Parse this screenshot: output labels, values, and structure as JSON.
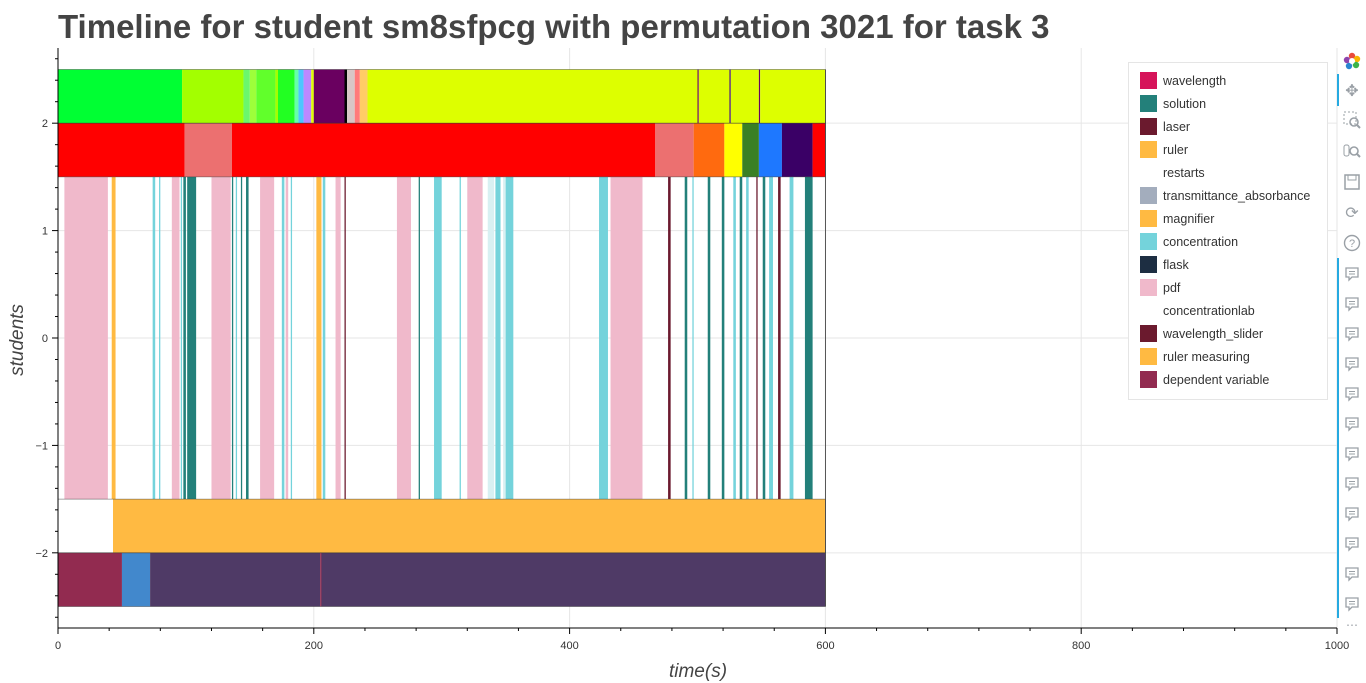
{
  "title": "Timeline for student sm8sfpcg with permutation 3021 for task 3",
  "chart_data": {
    "type": "timeline",
    "xlabel": "time(s)",
    "ylabel": "students",
    "xlim": [
      0,
      1000
    ],
    "ylim": [
      -2.7,
      2.7
    ],
    "x_ticks": [
      "0",
      "200",
      "400",
      "600",
      "800",
      "1000"
    ],
    "y_ticks": [
      "2",
      "1",
      "0",
      "−1",
      "−2"
    ],
    "x_tick_values": [
      0,
      200,
      400,
      600,
      800,
      1000
    ],
    "y_tick_values": [
      2,
      1,
      0,
      -1,
      -2
    ],
    "grid": true,
    "legend_position": "top-right",
    "legend": [
      {
        "label": "wavelength",
        "color": "#d6145a"
      },
      {
        "label": "solution",
        "color": "#23807a"
      },
      {
        "label": "laser",
        "color": "#6b1a2e"
      },
      {
        "label": "ruler",
        "color": "#ffba42"
      },
      {
        "label": "restarts",
        "color": "#ffffff"
      },
      {
        "label": "transmittance_absorbance",
        "color": "#a3adbd"
      },
      {
        "label": "magnifier",
        "color": "#ffba42"
      },
      {
        "label": "concentration",
        "color": "#74d3db"
      },
      {
        "label": "flask",
        "color": "#1d2e42"
      },
      {
        "label": "pdf",
        "color": "#f0b9cb"
      },
      {
        "label": "concentrationlab",
        "color": "#ffffff"
      },
      {
        "label": "wavelength_slider",
        "color": "#6b1a2e"
      },
      {
        "label": "ruler measuring",
        "color": "#ffba42"
      },
      {
        "label": "dependent variable",
        "color": "#922b50"
      }
    ],
    "rows": [
      {
        "y_range": [
          2,
          2.5
        ],
        "segments": [
          {
            "start": 0,
            "end": 97,
            "color": "#00ff33"
          },
          {
            "start": 97,
            "end": 145,
            "color": "#a3ff00"
          },
          {
            "start": 145,
            "end": 150,
            "color": "#6cf76c"
          },
          {
            "start": 150,
            "end": 155,
            "color": "#9dff3a"
          },
          {
            "start": 155,
            "end": 170,
            "color": "#61ff2b"
          },
          {
            "start": 170,
            "end": 172,
            "color": "#a3ff00"
          },
          {
            "start": 172,
            "end": 185,
            "color": "#22ff22"
          },
          {
            "start": 185,
            "end": 188,
            "color": "#66ffaa"
          },
          {
            "start": 188,
            "end": 192,
            "color": "#4cc6ff"
          },
          {
            "start": 192,
            "end": 198,
            "color": "#bb88ff"
          },
          {
            "start": 198,
            "end": 200,
            "color": "#e0ff00"
          },
          {
            "start": 200,
            "end": 224,
            "color": "#6a0060"
          },
          {
            "start": 224,
            "end": 226,
            "color": "#000000"
          },
          {
            "start": 226,
            "end": 232,
            "color": "#d8c6c6"
          },
          {
            "start": 232,
            "end": 236,
            "color": "#ff7a7a"
          },
          {
            "start": 236,
            "end": 242,
            "color": "#ffcc66"
          },
          {
            "start": 242,
            "end": 500,
            "color": "#ddff00"
          },
          {
            "start": 500,
            "end": 501,
            "color": "#6a0060"
          },
          {
            "start": 501,
            "end": 525,
            "color": "#ddff00"
          },
          {
            "start": 525,
            "end": 526,
            "color": "#3d0080"
          },
          {
            "start": 526,
            "end": 548,
            "color": "#ddff00"
          },
          {
            "start": 548,
            "end": 549,
            "color": "#6a0060"
          },
          {
            "start": 549,
            "end": 600,
            "color": "#ddff00"
          }
        ]
      },
      {
        "y_range": [
          1.5,
          2
        ],
        "segments": [
          {
            "start": 0,
            "end": 99,
            "color": "#ff0000"
          },
          {
            "start": 99,
            "end": 136,
            "color": "#ec7070"
          },
          {
            "start": 136,
            "end": 467,
            "color": "#ff0000"
          },
          {
            "start": 467,
            "end": 497,
            "color": "#ec7070"
          },
          {
            "start": 497,
            "end": 521,
            "color": "#ff6a0f"
          },
          {
            "start": 521,
            "end": 535,
            "color": "#ffff00"
          },
          {
            "start": 535,
            "end": 548,
            "color": "#3a8024"
          },
          {
            "start": 548,
            "end": 566,
            "color": "#1e78ff"
          },
          {
            "start": 566,
            "end": 590,
            "color": "#3a0066"
          },
          {
            "start": 590,
            "end": 600,
            "color": "#ff0000"
          }
        ]
      },
      {
        "y_range": [
          -1.5,
          1.5
        ],
        "segments": [
          {
            "start": 5,
            "end": 39,
            "color": "#f0b9cb"
          },
          {
            "start": 42,
            "end": 45,
            "color": "#ffba42"
          },
          {
            "start": 74,
            "end": 76,
            "color": "#74d3db"
          },
          {
            "start": 79,
            "end": 80,
            "color": "#74d3db"
          },
          {
            "start": 89,
            "end": 95,
            "color": "#f0b9cb"
          },
          {
            "start": 96,
            "end": 97,
            "color": "#74d3db"
          },
          {
            "start": 98,
            "end": 100,
            "color": "#23807a"
          },
          {
            "start": 101,
            "end": 108,
            "color": "#23807a"
          },
          {
            "start": 120,
            "end": 135,
            "color": "#f0b9cb"
          },
          {
            "start": 136,
            "end": 137,
            "color": "#23807a"
          },
          {
            "start": 139,
            "end": 140,
            "color": "#74d3db"
          },
          {
            "start": 143,
            "end": 144,
            "color": "#23807a"
          },
          {
            "start": 147,
            "end": 149,
            "color": "#23807a"
          },
          {
            "start": 158,
            "end": 169,
            "color": "#f0b9cb"
          },
          {
            "start": 175,
            "end": 177,
            "color": "#74d3db"
          },
          {
            "start": 178,
            "end": 180,
            "color": "#f0b9cb"
          },
          {
            "start": 182,
            "end": 183,
            "color": "#74d3db"
          },
          {
            "start": 202,
            "end": 206,
            "color": "#ffba42"
          },
          {
            "start": 207,
            "end": 209,
            "color": "#74d3db"
          },
          {
            "start": 217,
            "end": 221,
            "color": "#f0b9cb"
          },
          {
            "start": 224,
            "end": 225,
            "color": "#6b1a2e"
          },
          {
            "start": 265,
            "end": 276,
            "color": "#f0b9cb"
          },
          {
            "start": 282,
            "end": 283,
            "color": "#23807a"
          },
          {
            "start": 294,
            "end": 300,
            "color": "#74d3db"
          },
          {
            "start": 314,
            "end": 315,
            "color": "#74d3db"
          },
          {
            "start": 320,
            "end": 332,
            "color": "#f0b9cb"
          },
          {
            "start": 336,
            "end": 341,
            "color": "#d8f0f2"
          },
          {
            "start": 342,
            "end": 346,
            "color": "#74d3db"
          },
          {
            "start": 348,
            "end": 350,
            "color": "#d8f0f2"
          },
          {
            "start": 350,
            "end": 356,
            "color": "#74d3db"
          },
          {
            "start": 423,
            "end": 430,
            "color": "#74d3db"
          },
          {
            "start": 432,
            "end": 457,
            "color": "#f0b9cb"
          },
          {
            "start": 477,
            "end": 479,
            "color": "#6b1a2e"
          },
          {
            "start": 490,
            "end": 492,
            "color": "#23807a"
          },
          {
            "start": 496,
            "end": 497,
            "color": "#74d3db"
          },
          {
            "start": 508,
            "end": 510,
            "color": "#23807a"
          },
          {
            "start": 519,
            "end": 521,
            "color": "#23807a"
          },
          {
            "start": 528,
            "end": 530,
            "color": "#74d3db"
          },
          {
            "start": 533,
            "end": 535,
            "color": "#23807a"
          },
          {
            "start": 538,
            "end": 540,
            "color": "#74d3db"
          },
          {
            "start": 546,
            "end": 547,
            "color": "#6b1a2e"
          },
          {
            "start": 551,
            "end": 553,
            "color": "#23807a"
          },
          {
            "start": 556,
            "end": 559,
            "color": "#74d3db"
          },
          {
            "start": 563,
            "end": 565,
            "color": "#6b1a2e"
          },
          {
            "start": 572,
            "end": 575,
            "color": "#74d3db"
          },
          {
            "start": 584,
            "end": 590,
            "color": "#23807a"
          }
        ]
      },
      {
        "y_range": [
          -2,
          -1.5
        ],
        "segments": [
          {
            "start": 43,
            "end": 600,
            "color": "#ffba42"
          }
        ]
      },
      {
        "y_range": [
          -2.5,
          -2
        ],
        "segments": [
          {
            "start": 0,
            "end": 50,
            "color": "#922b50"
          },
          {
            "start": 50,
            "end": 72,
            "color": "#4288cc"
          },
          {
            "start": 72,
            "end": 205,
            "color": "#4f3a66"
          },
          {
            "start": 205,
            "end": 206,
            "color": "#922b50"
          },
          {
            "start": 206,
            "end": 600,
            "color": "#4f3a66"
          }
        ]
      }
    ]
  },
  "toolbar": {
    "icons": [
      "bokeh-logo-icon",
      "pan-icon",
      "box-zoom-icon",
      "wheel-zoom-icon",
      "save-icon",
      "reset-icon",
      "help-icon",
      "hover-icon"
    ],
    "hover_count": 12
  }
}
